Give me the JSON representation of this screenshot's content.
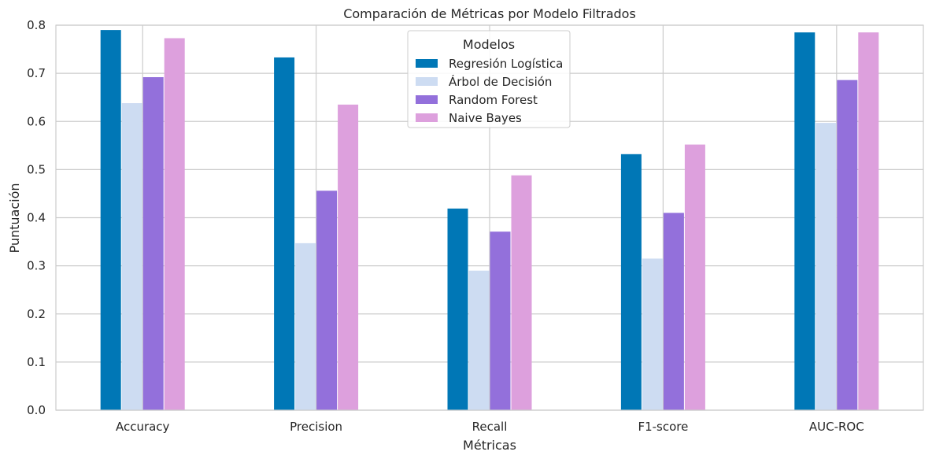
{
  "chart_data": {
    "type": "bar",
    "title": "Comparación de Métricas por Modelo Filtrados",
    "xlabel": "Métricas",
    "ylabel": "Puntuación",
    "categories": [
      "Accuracy",
      "Precision",
      "Recall",
      "F1-score",
      "AUC-ROC"
    ],
    "series": [
      {
        "name": "Regresión Logística",
        "color": "#0077b6",
        "values": [
          0.79,
          0.733,
          0.419,
          0.532,
          0.785
        ]
      },
      {
        "name": "Árbol de Decisión",
        "color": "#cddcf2",
        "values": [
          0.638,
          0.347,
          0.29,
          0.315,
          0.597
        ]
      },
      {
        "name": "Random Forest",
        "color": "#9370db",
        "values": [
          0.692,
          0.456,
          0.371,
          0.41,
          0.686
        ]
      },
      {
        "name": "Naive Bayes",
        "color": "#dda0dd",
        "values": [
          0.773,
          0.635,
          0.488,
          0.552,
          0.785
        ]
      }
    ],
    "ylim": [
      0,
      0.8
    ],
    "yticks": [
      "0.0",
      "0.1",
      "0.2",
      "0.3",
      "0.4",
      "0.5",
      "0.6",
      "0.7",
      "0.8"
    ],
    "grid": true,
    "legend": {
      "title": "Modelos",
      "placement": "top-center"
    }
  }
}
